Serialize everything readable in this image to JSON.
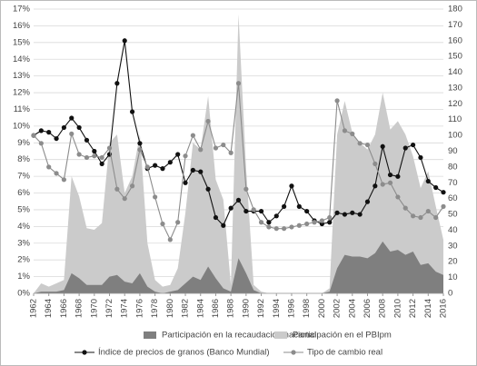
{
  "chart_data": {
    "type": "area-line",
    "x": [
      1962,
      1963,
      1964,
      1965,
      1966,
      1967,
      1968,
      1969,
      1970,
      1971,
      1972,
      1973,
      1974,
      1975,
      1976,
      1977,
      1978,
      1979,
      1980,
      1981,
      1982,
      1983,
      1984,
      1985,
      1986,
      1987,
      1988,
      1989,
      1990,
      1991,
      1992,
      1993,
      1994,
      1995,
      1996,
      1997,
      1998,
      1999,
      2000,
      2001,
      2002,
      2003,
      2004,
      2005,
      2006,
      2007,
      2008,
      2009,
      2010,
      2011,
      2012,
      2013,
      2014,
      2015,
      2016
    ],
    "xlim": [
      1962,
      2016
    ],
    "xticks": [
      1962,
      1964,
      1966,
      1968,
      1970,
      1972,
      1974,
      1976,
      1978,
      1980,
      1982,
      1984,
      1986,
      1988,
      1990,
      1992,
      1994,
      1996,
      1998,
      2000,
      2002,
      2004,
      2006,
      2008,
      2010,
      2012,
      2014,
      2016
    ],
    "ylim": [
      0,
      17
    ],
    "yticks": [
      {
        "value": 0,
        "label": "0%"
      },
      {
        "value": 1,
        "label": "1%"
      },
      {
        "value": 2,
        "label": "2%"
      },
      {
        "value": 3,
        "label": "3%"
      },
      {
        "value": 4,
        "label": "4%"
      },
      {
        "value": 5,
        "label": "5%"
      },
      {
        "value": 6,
        "label": "6%"
      },
      {
        "value": 7,
        "label": "7%"
      },
      {
        "value": 8,
        "label": "8%"
      },
      {
        "value": 9,
        "label": "9%"
      },
      {
        "value": 10,
        "label": "10%"
      },
      {
        "value": 11,
        "label": "11%"
      },
      {
        "value": 12,
        "label": "12%"
      },
      {
        "value": 13,
        "label": "13%"
      },
      {
        "value": 14,
        "label": "14%"
      },
      {
        "value": 15,
        "label": "15%"
      },
      {
        "value": 16,
        "label": "16%"
      },
      {
        "value": 17,
        "label": "17%"
      }
    ],
    "y2lim": [
      0,
      180
    ],
    "y2ticks": [
      0,
      10,
      20,
      30,
      40,
      50,
      60,
      70,
      80,
      90,
      100,
      110,
      120,
      130,
      140,
      150,
      160,
      170,
      180
    ],
    "grid": true,
    "legend": "bottom",
    "series": [
      {
        "name": "Participación en la recaudación nacional",
        "kind": "area",
        "color": "#7f7f7f",
        "values": [
          0,
          0.1,
          0.1,
          0.1,
          0.2,
          1.2,
          0.9,
          0.5,
          0.5,
          0.5,
          1.0,
          1.1,
          0.7,
          0.6,
          1.2,
          0.4,
          0.1,
          0,
          0.1,
          0.2,
          0.6,
          1.0,
          0.8,
          1.6,
          0.9,
          0.3,
          0.1,
          2.1,
          1.2,
          0.2,
          0,
          0,
          0,
          0,
          0,
          0,
          0,
          0,
          0,
          0.1,
          1.5,
          2.3,
          2.2,
          2.2,
          2.1,
          2.4,
          3.1,
          2.5,
          2.6,
          2.3,
          2.5,
          1.7,
          1.8,
          1.3,
          1.1
        ]
      },
      {
        "name": "Participación en el PBIpm",
        "kind": "area",
        "color": "#cbcbcb",
        "values": [
          0,
          0.6,
          0.4,
          0.6,
          0.8,
          7.0,
          5.8,
          3.9,
          3.8,
          4.2,
          9.0,
          9.5,
          6.0,
          7.0,
          9.5,
          3.0,
          0.8,
          0.4,
          0.5,
          1.5,
          4.8,
          9.0,
          8.6,
          11.8,
          6.8,
          5.6,
          0.5,
          16.7,
          7.5,
          0.5,
          0.1,
          0,
          0,
          0,
          0,
          0,
          0,
          0,
          0,
          0.3,
          9.5,
          11.5,
          9.6,
          9.0,
          8.6,
          9.5,
          12.0,
          9.8,
          10.3,
          9.5,
          8.2,
          6.3,
          7.3,
          5.2,
          3.2
        ]
      },
      {
        "name": "Índice de precios de granos (Banco Mundial)",
        "kind": "line",
        "axis": "y2",
        "color": "#111111",
        "values": [
          100,
          103,
          102,
          98,
          105,
          111,
          105,
          97,
          90,
          82,
          88,
          133,
          160,
          115,
          95,
          79,
          81,
          79,
          83,
          88,
          70,
          78,
          77,
          66,
          48,
          43,
          54,
          59,
          52,
          52,
          52,
          45,
          49,
          55,
          68,
          55,
          52,
          46,
          44,
          45,
          51,
          50,
          51,
          50,
          58,
          68,
          93,
          75,
          74,
          92,
          94,
          86,
          71,
          67,
          64
        ]
      },
      {
        "name": "Tipo de cambio real",
        "kind": "line",
        "axis": "y2",
        "color": "#8c8c8c",
        "values": [
          100,
          95,
          80,
          76,
          72,
          101,
          88,
          86,
          87,
          86,
          92,
          66,
          60,
          68,
          91,
          80,
          61,
          44,
          34,
          45,
          87,
          100,
          91,
          109,
          92,
          94,
          89,
          133,
          66,
          53,
          45,
          42,
          41,
          41,
          42,
          43,
          44,
          45,
          46,
          48,
          122,
          103,
          101,
          95,
          94,
          82,
          69,
          70,
          61,
          54,
          49,
          48,
          52,
          48,
          55
        ]
      }
    ]
  }
}
